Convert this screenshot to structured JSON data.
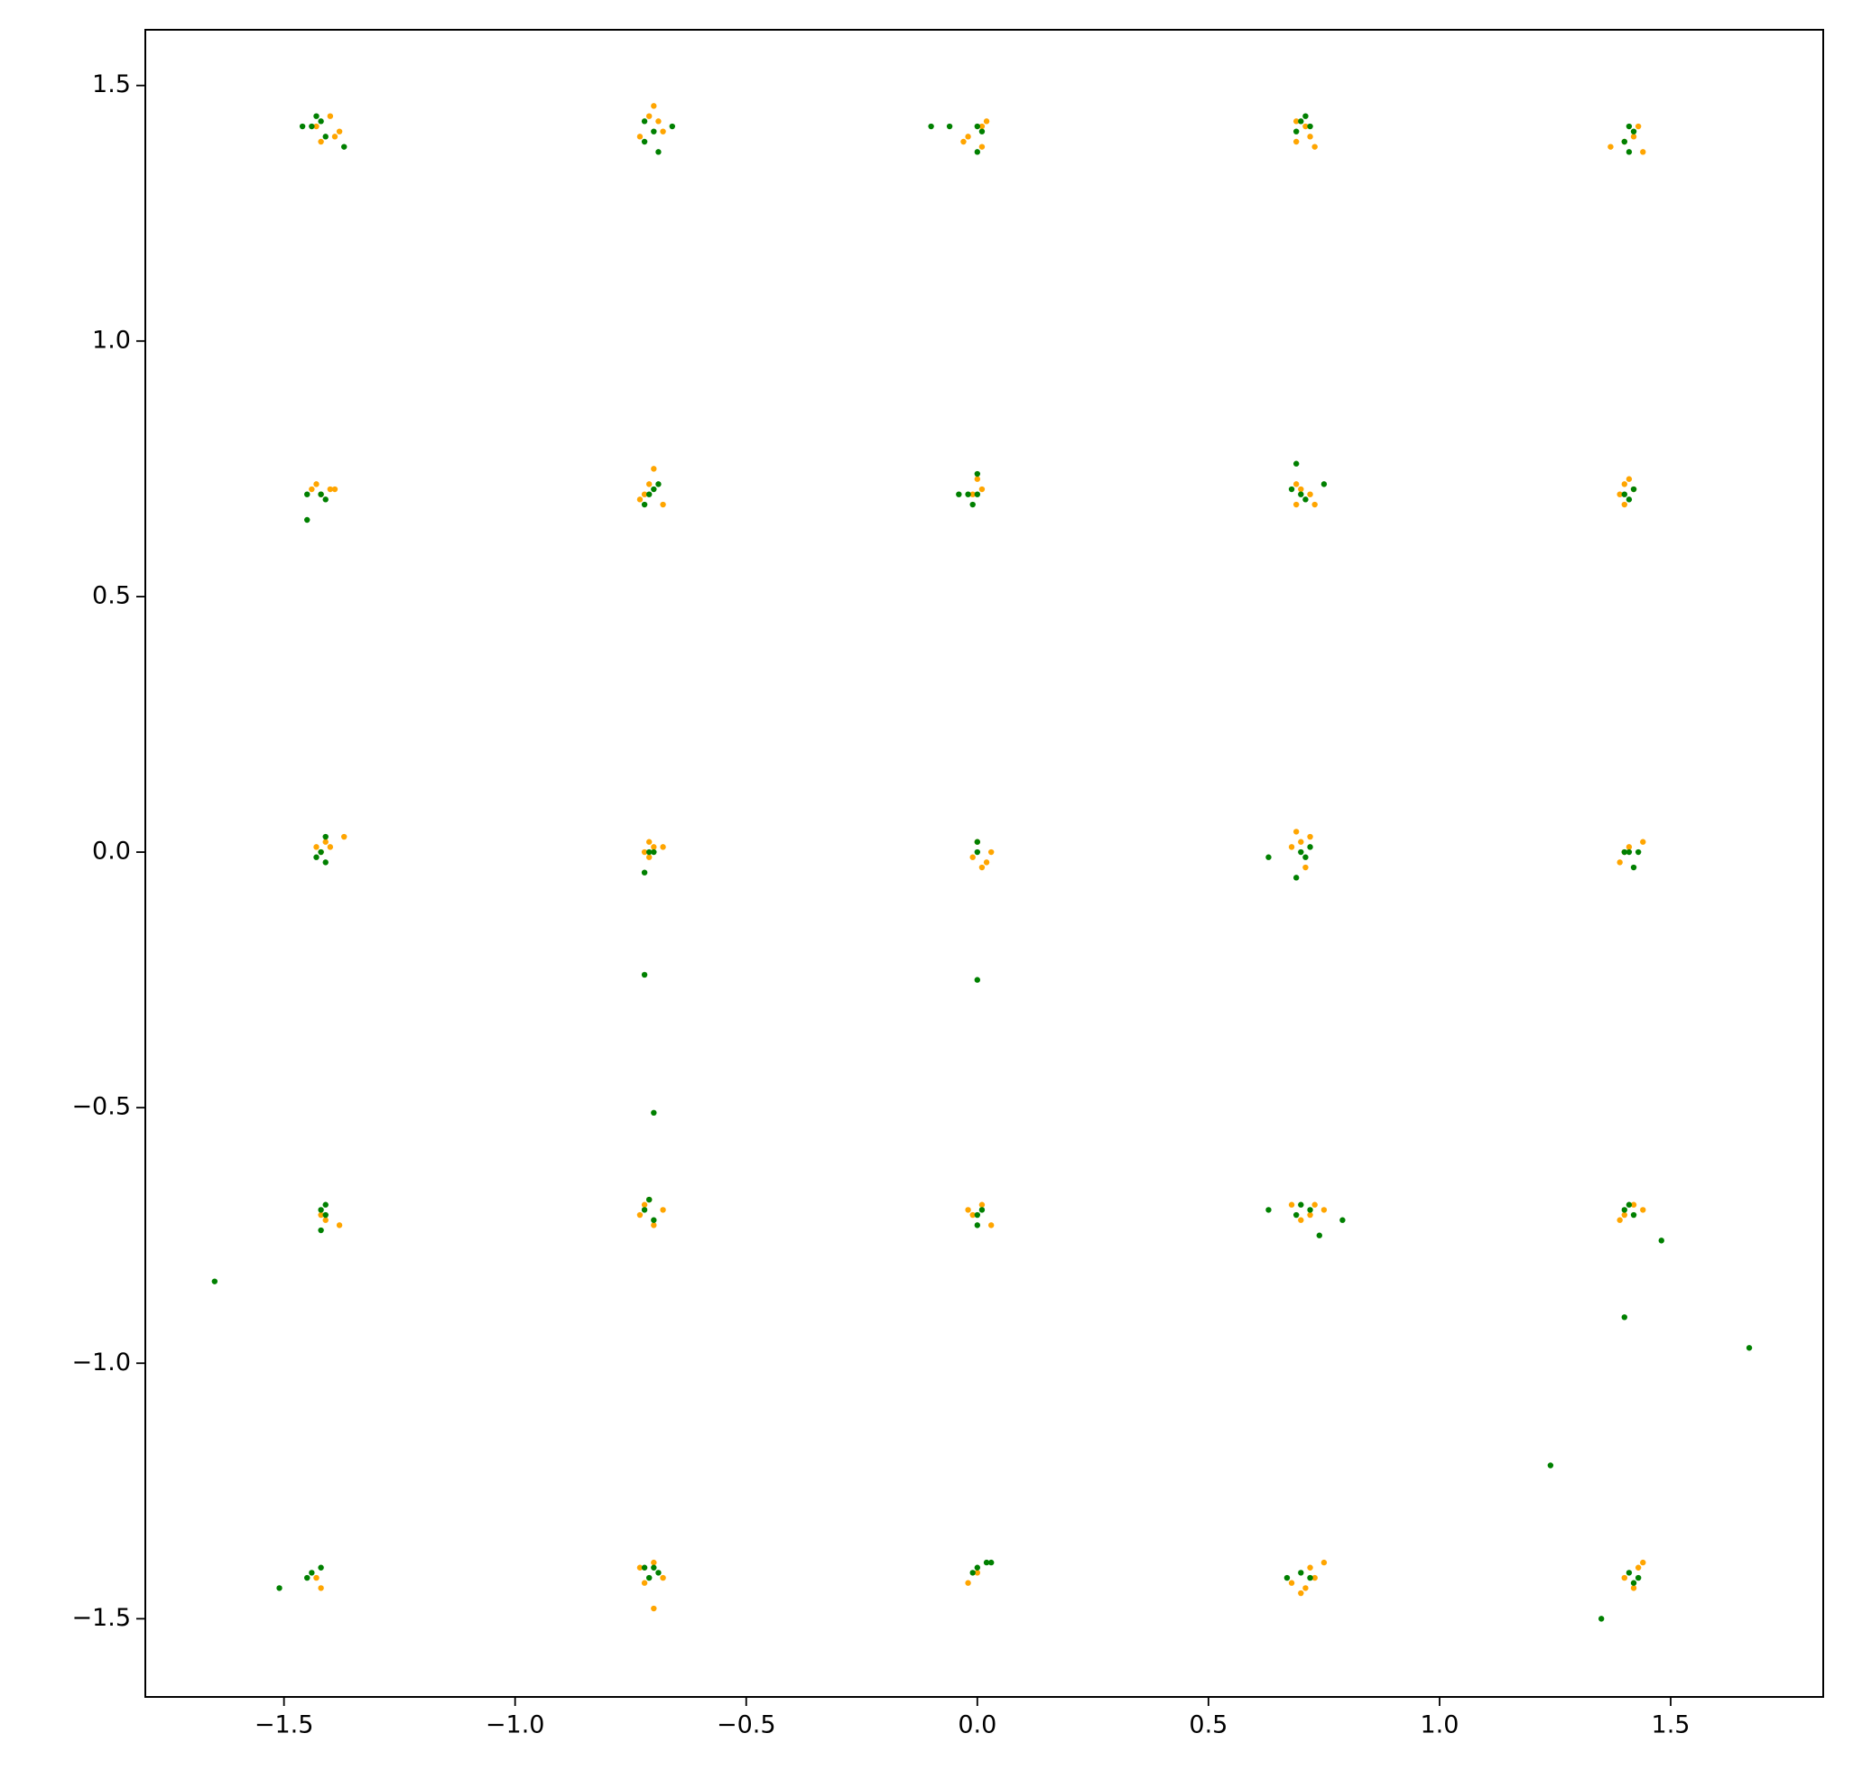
{
  "chart_data": {
    "type": "scatter",
    "series": [
      {
        "color": "#ffa500",
        "x": [
          -1.4,
          -1.38,
          -1.42,
          -1.39,
          -1.43,
          -0.7,
          -0.69,
          -0.73,
          -0.71,
          -0.68,
          0.02,
          -0.02,
          0.01,
          -0.03,
          0.01,
          0.69,
          0.73,
          0.69,
          0.72,
          0.71,
          1.37,
          1.43,
          1.44,
          1.4,
          1.42,
          -1.43,
          -1.39,
          -1.42,
          -1.4,
          -1.44,
          -0.7,
          -0.71,
          -0.68,
          -0.72,
          -0.73,
          0.01,
          -0.01,
          0.0,
          0.69,
          0.73,
          0.69,
          0.72,
          0.7,
          1.4,
          1.42,
          1.4,
          1.39,
          1.41,
          -1.37,
          -1.43,
          -1.41,
          -1.42,
          -1.4,
          -0.71,
          -0.7,
          -0.68,
          -0.72,
          -0.71,
          0.0,
          0.02,
          -0.01,
          0.03,
          0.01,
          0.69,
          0.72,
          0.71,
          0.68,
          0.7,
          1.39,
          1.44,
          1.41,
          1.4,
          -1.42,
          -1.38,
          -1.41,
          -0.72,
          -0.68,
          -0.7,
          -0.73,
          -0.71,
          0.03,
          -0.01,
          0.01,
          -0.02,
          0.68,
          0.72,
          0.75,
          0.7,
          0.73,
          1.39,
          1.44,
          1.4,
          1.42,
          -1.42,
          -1.43,
          -0.7,
          -0.73,
          -0.68,
          -0.72,
          -0.7,
          -0.02,
          0.0,
          0.7,
          0.75,
          0.68,
          0.72,
          0.71,
          0.73,
          1.44,
          1.42,
          1.43,
          1.4
        ],
        "y": [
          1.44,
          1.41,
          1.39,
          1.4,
          1.42,
          1.46,
          1.43,
          1.4,
          1.44,
          1.41,
          1.43,
          1.4,
          1.38,
          1.39,
          1.42,
          1.43,
          1.38,
          1.39,
          1.4,
          1.42,
          1.38,
          1.42,
          1.37,
          1.39,
          1.4,
          0.72,
          0.71,
          0.7,
          0.71,
          0.71,
          0.75,
          0.72,
          0.68,
          0.7,
          0.69,
          0.71,
          0.7,
          0.73,
          0.72,
          0.68,
          0.68,
          0.7,
          0.71,
          0.72,
          0.71,
          0.68,
          0.7,
          0.73,
          0.03,
          0.01,
          0.02,
          0.0,
          0.01,
          0.02,
          0.01,
          0.01,
          0.0,
          -0.01,
          0.02,
          -0.02,
          -0.01,
          0.0,
          -0.03,
          0.04,
          0.03,
          -0.03,
          0.01,
          0.02,
          -0.02,
          0.02,
          0.01,
          0.0,
          -0.71,
          -0.73,
          -0.72,
          -0.69,
          -0.7,
          -0.73,
          -0.71,
          -0.68,
          -0.73,
          -0.71,
          -0.69,
          -0.7,
          -0.69,
          -0.71,
          -0.7,
          -0.72,
          -0.69,
          -0.72,
          -0.7,
          -0.71,
          -0.69,
          -1.44,
          -1.42,
          -1.48,
          -1.4,
          -1.42,
          -1.43,
          -1.39,
          -1.43,
          -1.41,
          -1.45,
          -1.39,
          -1.43,
          -1.4,
          -1.44,
          -1.42,
          -1.39,
          -1.44,
          -1.4,
          -1.42
        ]
      },
      {
        "color": "#008000",
        "x": [
          -1.46,
          -1.37,
          -1.43,
          -1.41,
          -1.44,
          -1.42,
          -0.66,
          -0.69,
          -0.72,
          -0.7,
          -0.72,
          -0.1,
          -0.06,
          0.0,
          0.0,
          0.01,
          0.71,
          0.69,
          0.72,
          0.7,
          1.41,
          1.4,
          1.41,
          1.42,
          -1.45,
          -1.45,
          -1.41,
          -1.42,
          -0.72,
          -0.7,
          -0.69,
          -0.71,
          -0.04,
          -0.02,
          0.0,
          -0.01,
          0.0,
          0.69,
          0.68,
          0.71,
          0.75,
          0.7,
          1.41,
          1.4,
          1.42,
          -1.41,
          -1.43,
          -1.41,
          -1.42,
          -0.72,
          -0.7,
          -0.71,
          0.0,
          0.0,
          0.63,
          0.69,
          0.7,
          0.72,
          0.71,
          1.41,
          1.42,
          1.4,
          1.43,
          -1.42,
          -1.41,
          -1.42,
          -1.41,
          -0.71,
          -0.7,
          -0.72,
          0.0,
          0.01,
          0.0,
          0.63,
          0.69,
          0.72,
          0.74,
          0.79,
          0.7,
          1.4,
          1.41,
          1.42,
          1.48,
          -1.51,
          -1.45,
          -1.42,
          -1.44,
          -0.71,
          -0.72,
          -0.7,
          -0.69,
          0.02,
          0.03,
          -0.01,
          0.0,
          0.67,
          0.7,
          0.72,
          1.41,
          1.43,
          1.42,
          -1.65,
          -0.72,
          0.0,
          -0.7,
          1.4,
          1.67,
          1.24,
          1.35
        ],
        "y": [
          1.42,
          1.38,
          1.44,
          1.4,
          1.42,
          1.43,
          1.42,
          1.37,
          1.39,
          1.41,
          1.43,
          1.42,
          1.42,
          1.37,
          1.42,
          1.41,
          1.44,
          1.41,
          1.42,
          1.43,
          1.42,
          1.39,
          1.37,
          1.41,
          0.65,
          0.7,
          0.69,
          0.7,
          0.68,
          0.71,
          0.72,
          0.7,
          0.7,
          0.7,
          0.74,
          0.68,
          0.7,
          0.76,
          0.71,
          0.69,
          0.72,
          0.7,
          0.69,
          0.7,
          0.71,
          0.03,
          -0.01,
          -0.02,
          0.0,
          -0.04,
          0.0,
          0.0,
          0.02,
          0.0,
          -0.01,
          -0.05,
          0.0,
          0.01,
          -0.01,
          0.0,
          -0.03,
          0.0,
          0.0,
          -0.7,
          -0.69,
          -0.74,
          -0.71,
          -0.68,
          -0.72,
          -0.7,
          -0.73,
          -0.7,
          -0.71,
          -0.7,
          -0.71,
          -0.7,
          -0.75,
          -0.72,
          -0.69,
          -0.7,
          -0.69,
          -0.71,
          -0.76,
          -1.44,
          -1.42,
          -1.4,
          -1.41,
          -1.42,
          -1.4,
          -1.4,
          -1.41,
          -1.39,
          -1.39,
          -1.41,
          -1.4,
          -1.42,
          -1.41,
          -1.42,
          -1.41,
          -1.42,
          -1.43,
          -0.84,
          -0.24,
          -0.25,
          -0.51,
          -0.91,
          -0.97,
          -1.2,
          -1.5
        ]
      }
    ],
    "xlim": [
      -1.8,
      1.83
    ],
    "ylim": [
      -1.653,
      1.609
    ],
    "xticks": [
      {
        "value": -1.5,
        "label": "−1.5"
      },
      {
        "value": -1.0,
        "label": "−1.0"
      },
      {
        "value": -0.5,
        "label": "−0.5"
      },
      {
        "value": 0,
        "label": "0.0"
      },
      0.5,
      {
        "value": 1.0,
        "label": "1.0"
      },
      1.5
    ],
    "yticks": [
      {
        "value": -1.5,
        "label": "−1.5"
      },
      {
        "value": -1.0,
        "label": "−1.0"
      },
      {
        "value": -0.5,
        "label": "−0.5"
      },
      {
        "value": 0,
        "label": "0.0"
      },
      0.5,
      {
        "value": 1.0,
        "label": "1.0"
      },
      1.5
    ],
    "grid": false
  }
}
